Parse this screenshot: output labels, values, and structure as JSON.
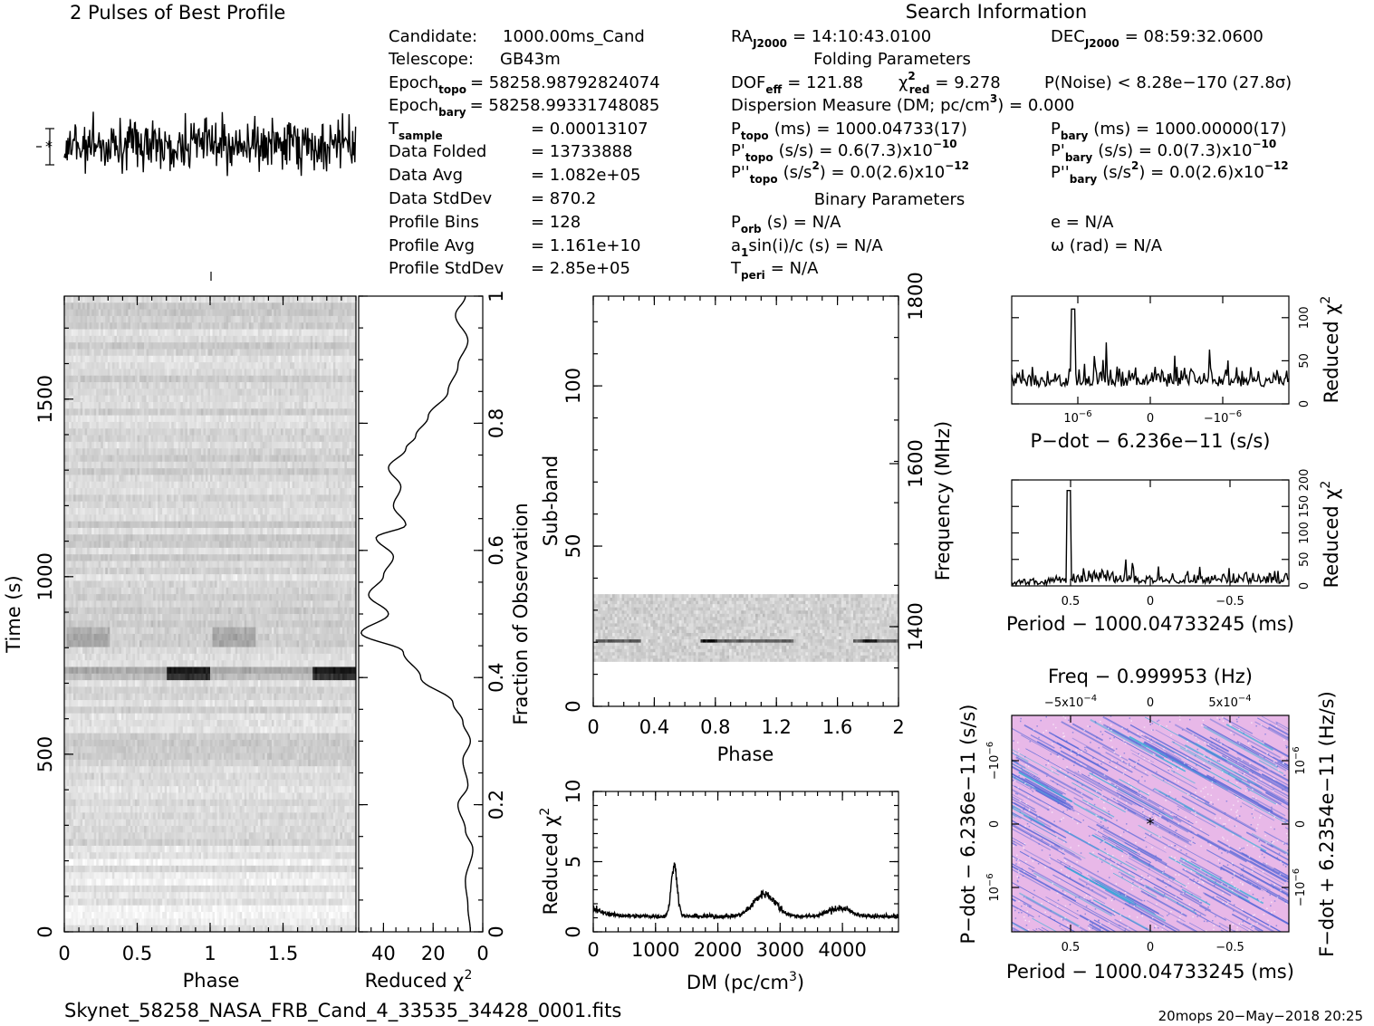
{
  "profile": {
    "title": "2 Pulses of Best Profile"
  },
  "info": {
    "col1": [
      {
        "k": "Candidate:",
        "v": "1000.00ms_Cand"
      },
      {
        "k": "Telescope:",
        "v": "GB43m"
      },
      {
        "k": "Epoch",
        "sub": "topo",
        "v": "= 58258.98792824074"
      },
      {
        "k": "Epoch",
        "sub": "bary",
        "v": "= 58258.99331748085"
      },
      {
        "k": "T",
        "sub": "sample",
        "v": "=   0.00013107"
      },
      {
        "k": "Data Folded",
        "v": "=   13733888"
      },
      {
        "k": "Data Avg",
        "v": "=   1.082e+05"
      },
      {
        "k": "Data StdDev",
        "v": "=   870.2"
      },
      {
        "k": "Profile Bins",
        "v": "=   128"
      },
      {
        "k": "Profile Avg",
        "v": "=   1.161e+10"
      },
      {
        "k": "Profile StdDev",
        "v": "=   2.85e+05"
      }
    ],
    "search_title": "Search Information",
    "folding_title": "Folding Parameters",
    "binary_title": "Binary Parameters",
    "ra": {
      "k": "RA",
      "sub": "J2000",
      "v": "= 14:10:43.0100"
    },
    "dec": {
      "k": "DEC",
      "sub": "J2000",
      "v": "= 08:59:32.0600"
    },
    "dof": {
      "k": "DOF",
      "sub": "eff",
      "v": "= 121.88"
    },
    "chi": {
      "k": "χ",
      "sup": "2",
      "sub": "red",
      "v": "= 9.278"
    },
    "pnoise": "P(Noise) < 8.28e−170   (27.8σ)",
    "dm": {
      "a": "Dispersion Measure (DM; pc/cm",
      "sup": "3",
      "b": ") = 0.000"
    },
    "ptopo": {
      "k": "P",
      "sub": "topo",
      "v": "(ms) =   1000.04733(17)"
    },
    "pbary": {
      "k": "P",
      "sub": "bary",
      "v": "(ms) =   1000.00000(17)"
    },
    "pdtopo": {
      "k": "P'",
      "sub": "topo",
      "v": "(s/s) =  0.6(7.3)x10",
      "sup": "−10"
    },
    "pdbary": {
      "k": "P'",
      "sub": "bary",
      "v": "(s/s) = 0.0(7.3)x10",
      "sup": "−10"
    },
    "pddtopo": {
      "k": "P''",
      "sub": "topo",
      "v": "(s/s",
      "sup1": "2",
      "v2": ") = 0.0(2.6)x10",
      "sup": "−12"
    },
    "pddbary": {
      "k": "P''",
      "sub": "bary",
      "v": "(s/s",
      "sup1": "2",
      "v2": ") = 0.0(2.6)x10",
      "sup": "−12"
    },
    "porb": {
      "k": "P",
      "sub": "orb",
      "v": "(s) = N/A"
    },
    "asini": {
      "a": "a",
      "sub": "1",
      "b": "sin(i)/c (s) = N/A"
    },
    "tperi": {
      "k": "T",
      "sub": "peri",
      "v": "= N/A"
    },
    "ecc": "e = N/A",
    "omega": "ω (rad) = N/A"
  },
  "footer": {
    "filename": "Skynet_58258_NASA_FRB_Cand_4_33535_34428_0001.fits",
    "stamp": "20mops 20−May−2018 20:25"
  },
  "chart_data": [
    {
      "type": "line",
      "id": "pulse-profile",
      "title": "2 Pulses of Best Profile",
      "x_range": [
        0,
        2
      ],
      "description_values": "noise-like profile, no labelled axes"
    },
    {
      "type": "heatmap",
      "id": "time-phase",
      "xlabel": "Phase",
      "ylabel": "Time (s)",
      "xlim": [
        0,
        2
      ],
      "ylim": [
        0,
        1790
      ],
      "x_ticks": [
        "0",
        "0.5",
        "1",
        "1.5"
      ],
      "y_ticks": [
        0,
        500,
        1000,
        1500
      ],
      "right_ylabel": "Fraction of Observation",
      "right_ticks": [
        "0",
        "0.2",
        "0.4",
        "0.6",
        "0.8",
        "1"
      ],
      "bright_rows_time_s": [
        737,
        837
      ]
    },
    {
      "type": "line",
      "id": "chi-vs-time",
      "xlabel": "Reduced χ",
      "xlabel_sup": "2",
      "x_ticks": [
        "40",
        "20",
        "0"
      ],
      "xlim": [
        50,
        0
      ]
    },
    {
      "type": "heatmap",
      "id": "subband-phase",
      "xlabel": "Phase",
      "ylabel": "Sub-band",
      "right_ylabel": "Frequency (MHz)",
      "xlim": [
        0,
        2
      ],
      "ylim": [
        0,
        128
      ],
      "x_ticks": [
        "0",
        "0.4",
        "0.8",
        "1.2",
        "1.6",
        "2"
      ],
      "y_ticks": [
        "0",
        "50",
        "100"
      ],
      "right_ticks": [
        "1400",
        "1600",
        "1800"
      ],
      "occupied_subbands": [
        14,
        35
      ]
    },
    {
      "type": "line",
      "id": "chi-vs-dm",
      "xlabel": "DM (pc/cm",
      "xlabel_sup": "3",
      "xlabel_end": ")",
      "ylabel": "Reduced χ",
      "ylabel_sup": "2",
      "xlim": [
        0,
        4900
      ],
      "ylim": [
        0,
        10
      ],
      "x_ticks": [
        "0",
        "1000",
        "2000",
        "3000",
        "4000"
      ],
      "y_ticks": [
        "0",
        "5",
        "10"
      ],
      "peaks": [
        {
          "x": 1300,
          "y": 4.8
        },
        {
          "x": 2750,
          "y": 2.8
        },
        {
          "x": 3950,
          "y": 1.8
        }
      ]
    },
    {
      "type": "line",
      "id": "chi-vs-pdot",
      "xlabel": "P−dot − 6.236e−11 (s/s)",
      "ylabel": "Reduced χ",
      "ylabel_sup": "2",
      "ylim": [
        0,
        125
      ],
      "y_ticks": [
        "0",
        "50",
        "100"
      ],
      "x_ticks": [
        "10",
        "0",
        "−10"
      ],
      "x_tick_sup": "−6"
    },
    {
      "type": "line",
      "id": "chi-vs-period",
      "xlabel": "Period − 1000.04733245 (ms)",
      "ylabel": "Reduced χ",
      "ylabel_sup": "2",
      "ylim": [
        0,
        200
      ],
      "y_ticks": [
        "0",
        "50",
        "100",
        "150",
        "200"
      ],
      "x_ticks": [
        "0.5",
        "0",
        "−0.5"
      ],
      "peak": {
        "x": 0.5,
        "y": 180
      }
    },
    {
      "type": "heatmap",
      "id": "period-pdot",
      "top_label": "Freq − 0.999953 (Hz)",
      "top_ticks": [
        "−5x10",
        "0",
        "5x10"
      ],
      "top_tick_sup": "−4",
      "xlabel": "Period − 1000.04733245 (ms)",
      "x_ticks": [
        "0.5",
        "0",
        "−0.5"
      ],
      "ylabel": "P−dot − 6.236e−11 (s/s)",
      "y_ticks": [
        "10",
        "0",
        "−10"
      ],
      "y_tick_sup": "−6",
      "right_ylabel": "F−dot + 6.2354e−11 (Hz/s)",
      "right_ticks": [
        "−10",
        "0",
        "10"
      ],
      "right_tick_sup": "−6",
      "colors": [
        "#e8b8e8",
        "#5a6ad8",
        "#36b0d8"
      ]
    }
  ]
}
